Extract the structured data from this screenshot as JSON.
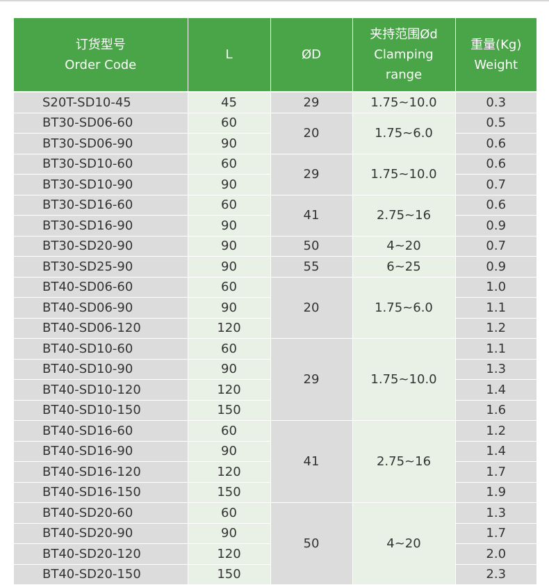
{
  "header": {
    "code_cn": "订货型号",
    "code_en": "Order Code",
    "l": "L",
    "d": "ØD",
    "range_cn": "夹持范围Ød",
    "range_en1": "Clamping",
    "range_en2": "range",
    "weight_cn": "重量(Kg)",
    "weight_en": "Weight"
  },
  "rows": [
    {
      "code": "S20T-SD10-45",
      "l": "45",
      "d": "29",
      "range": "1.75~10.0",
      "w": "0.3"
    },
    {
      "code": "BT30-SD06-60",
      "l": "60",
      "d": "20",
      "range": "1.75~6.0",
      "w": "0.5"
    },
    {
      "code": "BT30-SD06-90",
      "l": "90",
      "w": "0.6"
    },
    {
      "code": "BT30-SD10-60",
      "l": "60",
      "d": "29",
      "range": "1.75~10.0",
      "w": "0.6"
    },
    {
      "code": "BT30-SD10-90",
      "l": "90",
      "w": "0.7"
    },
    {
      "code": "BT30-SD16-60",
      "l": "60",
      "d": "41",
      "range": "2.75~16",
      "w": "0.6"
    },
    {
      "code": "BT30-SD16-90",
      "l": "90",
      "w": "0.9"
    },
    {
      "code": "BT30-SD20-90",
      "l": "90",
      "d": "50",
      "range": "4~20",
      "w": "0.7"
    },
    {
      "code": "BT30-SD25-90",
      "l": "90",
      "d": "55",
      "range": "6~25",
      "w": "0.9"
    },
    {
      "code": "BT40-SD06-60",
      "l": "60",
      "d": "20",
      "range": "1.75~6.0",
      "w": "1.0"
    },
    {
      "code": "BT40-SD06-90",
      "l": "90",
      "w": "1.1"
    },
    {
      "code": "BT40-SD06-120",
      "l": "120",
      "w": "1.2"
    },
    {
      "code": "BT40-SD10-60",
      "l": "60",
      "d": "29",
      "range": "1.75~10.0",
      "w": "1.1"
    },
    {
      "code": "BT40-SD10-90",
      "l": "90",
      "w": "1.3"
    },
    {
      "code": "BT40-SD10-120",
      "l": "120",
      "w": "1.4"
    },
    {
      "code": "BT40-SD10-150",
      "l": "150",
      "w": "1.6"
    },
    {
      "code": "BT40-SD16-60",
      "l": "60",
      "d": "41",
      "range": "2.75~16",
      "w": "1.2"
    },
    {
      "code": "BT40-SD16-90",
      "l": "90",
      "w": "1.4"
    },
    {
      "code": "BT40-SD16-120",
      "l": "120",
      "w": "1.7"
    },
    {
      "code": "BT40-SD16-150",
      "l": "150",
      "w": "1.9"
    },
    {
      "code": "BT40-SD20-60",
      "l": "60",
      "d": "50",
      "range": "4~20",
      "w": "1.3"
    },
    {
      "code": "BT40-SD20-90",
      "l": "90",
      "w": "1.7"
    },
    {
      "code": "BT40-SD20-120",
      "l": "120",
      "w": "2.0"
    },
    {
      "code": "BT40-SD20-150",
      "l": "150",
      "w": "2.3"
    }
  ]
}
